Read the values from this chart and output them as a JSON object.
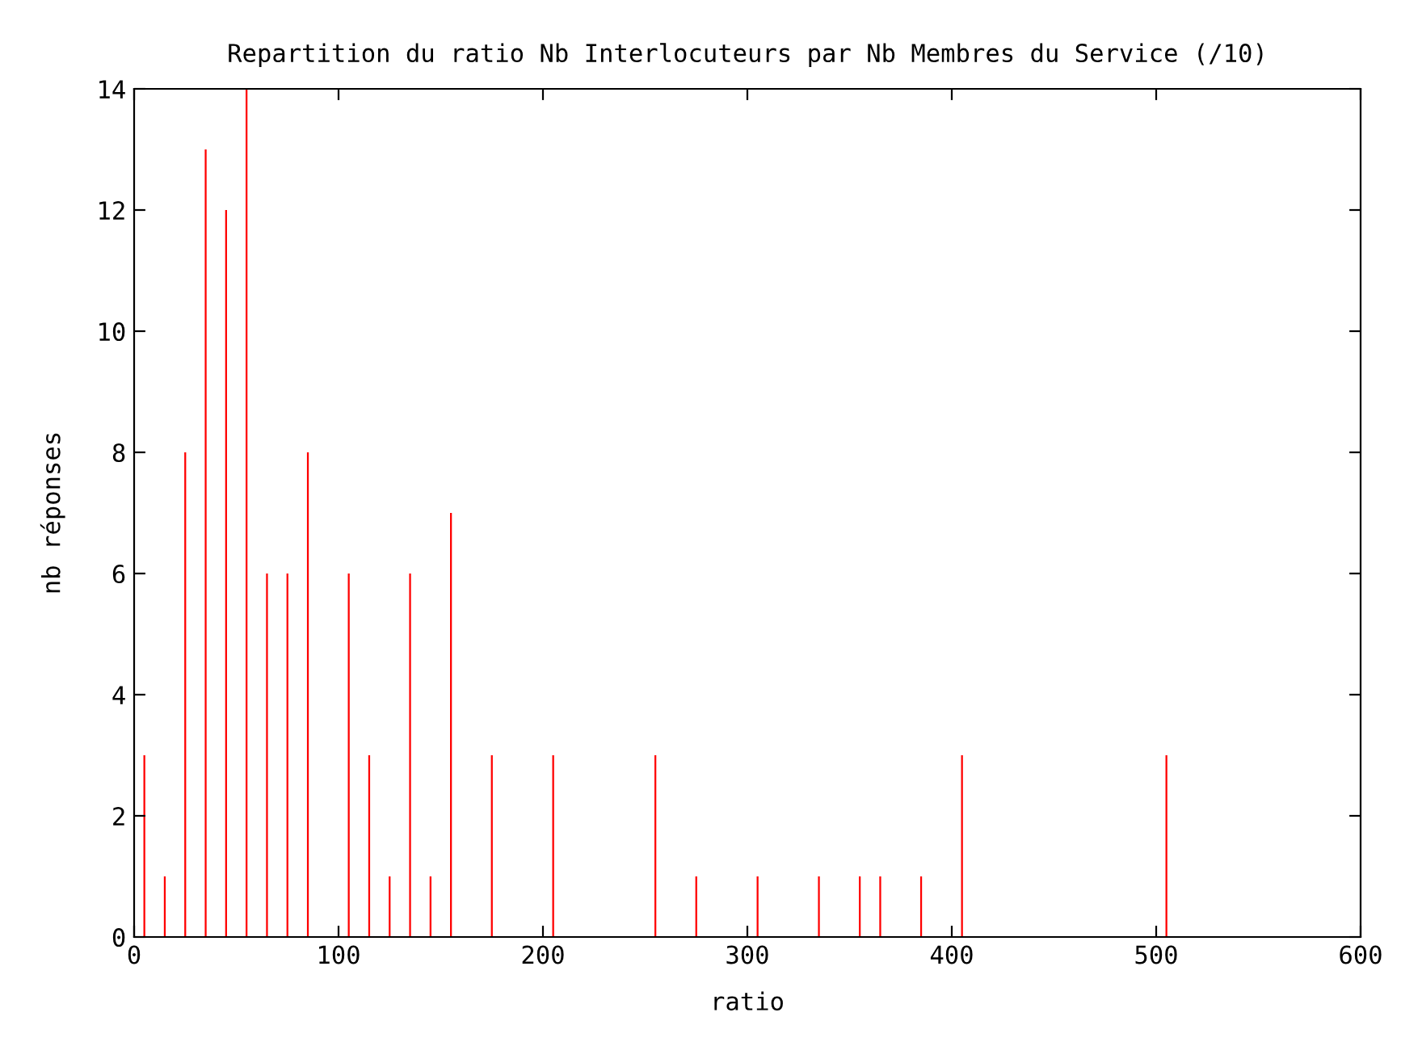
{
  "chart_data": {
    "type": "bar",
    "title": "Repartition du ratio Nb Interlocuteurs par Nb Membres du Service (/10)",
    "xlabel": "ratio",
    "ylabel": "nb réponses",
    "x": [
      5,
      15,
      25,
      35,
      45,
      55,
      65,
      75,
      85,
      105,
      115,
      125,
      135,
      145,
      155,
      175,
      205,
      255,
      275,
      305,
      335,
      355,
      365,
      385,
      405,
      505
    ],
    "values": [
      3,
      1,
      8,
      13,
      12,
      14,
      6,
      6,
      8,
      6,
      3,
      1,
      6,
      1,
      7,
      3,
      3,
      3,
      1,
      1,
      1,
      1,
      1,
      1,
      3,
      3
    ],
    "color": "#ff0000",
    "xlim": [
      0,
      600
    ],
    "xticks": [
      0,
      100,
      200,
      300,
      400,
      500,
      600
    ],
    "ylim": [
      0,
      14
    ],
    "yticks": [
      0,
      2,
      4,
      6,
      8,
      10,
      12,
      14
    ],
    "grid": false
  }
}
